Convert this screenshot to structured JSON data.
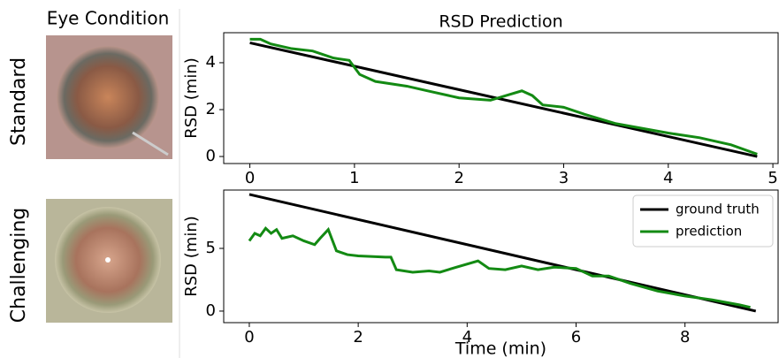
{
  "header": "Eye Condition",
  "rows": [
    "Standard",
    "Challenging"
  ],
  "chart_data": [
    {
      "type": "line",
      "title": "RSD Prediction",
      "ylabel": "RSD (min)",
      "xlim": [
        -0.25,
        5.05
      ],
      "ylim": [
        -0.3,
        5.28
      ],
      "xticks": [
        0,
        1,
        2,
        3,
        4,
        5
      ],
      "yticks": [
        0,
        2,
        4
      ],
      "series": [
        {
          "color": "#000000",
          "x": [
            0,
            4.85
          ],
          "values": [
            4.85,
            0
          ]
        },
        {
          "color": "#138a13",
          "x": [
            0,
            0.1,
            0.2,
            0.4,
            0.6,
            0.8,
            0.95,
            1.05,
            1.2,
            1.5,
            1.7,
            2.0,
            2.3,
            2.45,
            2.6,
            2.7,
            2.8,
            3.0,
            3.2,
            3.5,
            4.0,
            4.3,
            4.6,
            4.85
          ],
          "values": [
            5.0,
            5.0,
            4.8,
            4.6,
            4.5,
            4.2,
            4.1,
            3.5,
            3.2,
            3.0,
            2.8,
            2.5,
            2.4,
            2.6,
            2.8,
            2.6,
            2.2,
            2.1,
            1.8,
            1.4,
            1.0,
            0.8,
            0.5,
            0.1
          ]
        }
      ]
    },
    {
      "type": "line",
      "ylabel": "RSD (min)",
      "xlabel": "Time (min)",
      "xlim": [
        -0.47,
        9.71
      ],
      "ylim": [
        -0.92,
        9.65
      ],
      "xticks": [
        0,
        2,
        4,
        6,
        8
      ],
      "yticks": [
        0,
        5
      ],
      "legend": "upper right",
      "series": [
        {
          "name": "ground truth",
          "color": "#000000",
          "x": [
            0,
            9.3
          ],
          "values": [
            9.3,
            0
          ]
        },
        {
          "name": "prediction",
          "color": "#138a13",
          "x": [
            0,
            0.1,
            0.2,
            0.3,
            0.4,
            0.5,
            0.6,
            0.8,
            1.0,
            1.2,
            1.3,
            1.45,
            1.6,
            1.8,
            2.0,
            2.5,
            2.6,
            2.7,
            3.0,
            3.3,
            3.5,
            3.8,
            4.2,
            4.4,
            4.7,
            5.0,
            5.3,
            5.6,
            6.0,
            6.3,
            6.6,
            7.0,
            7.5,
            8.0,
            8.5,
            9.0,
            9.2
          ],
          "values": [
            5.6,
            6.2,
            6.0,
            6.6,
            6.2,
            6.5,
            5.8,
            6.0,
            5.6,
            5.3,
            5.8,
            6.5,
            4.8,
            4.5,
            4.4,
            4.3,
            4.3,
            3.3,
            3.1,
            3.2,
            3.1,
            3.5,
            4.0,
            3.4,
            3.3,
            3.6,
            3.3,
            3.5,
            3.4,
            2.8,
            2.8,
            2.2,
            1.6,
            1.2,
            0.9,
            0.5,
            0.3
          ]
        }
      ]
    }
  ]
}
